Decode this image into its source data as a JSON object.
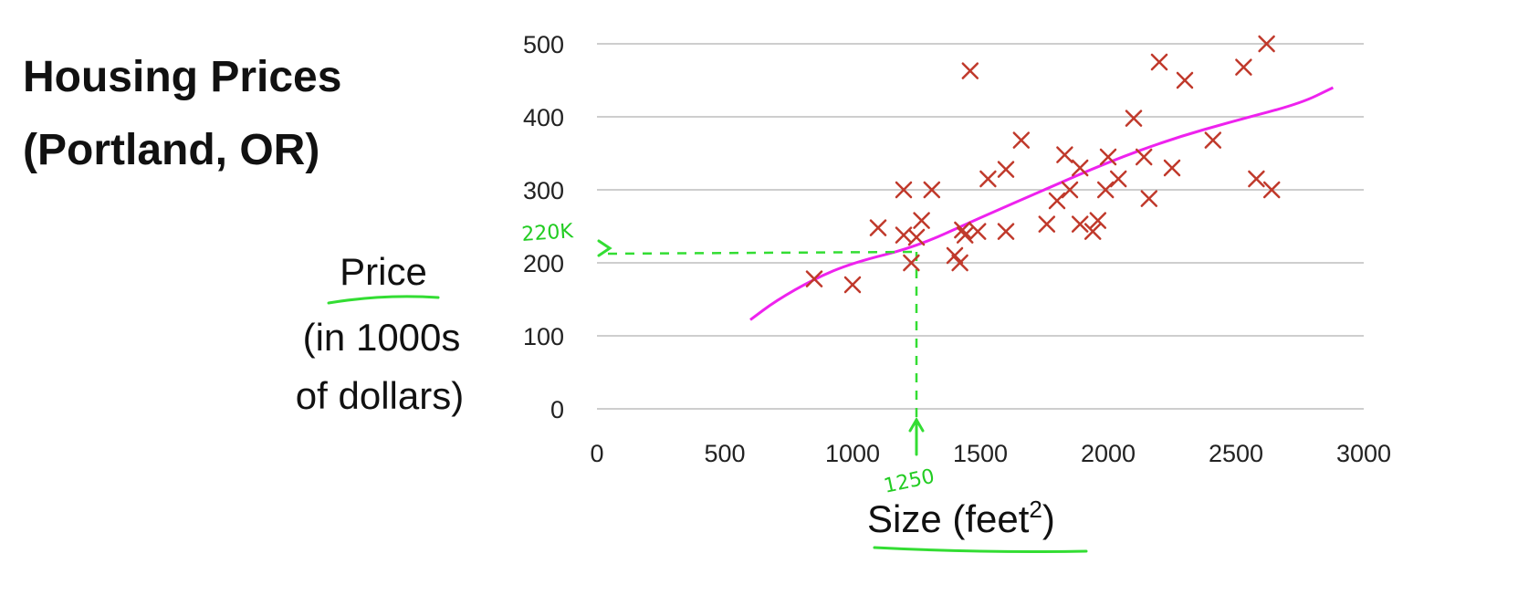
{
  "chart_data": {
    "type": "scatter",
    "title": "Housing Prices",
    "subtitle": "(Portland, OR)",
    "ylabel_lines": [
      "Price",
      "(in 1000s",
      "of dollars)"
    ],
    "xlabel_main": "Size (feet",
    "xlabel_sup": "2",
    "xlabel_close": ")",
    "xlim": [
      0,
      3000
    ],
    "ylim": [
      0,
      500
    ],
    "x_ticks": [
      0,
      500,
      1000,
      1500,
      2000,
      2500,
      3000
    ],
    "y_ticks": [
      0,
      100,
      200,
      300,
      400,
      500
    ],
    "grid": "horizontal",
    "marker": "x",
    "colors": {
      "points": "#c0392b",
      "fit_line": "#ee22ee",
      "annotation": "#22cc22",
      "grid": "#bdbdbd"
    },
    "points": [
      [
        850,
        178
      ],
      [
        1000,
        170
      ],
      [
        1100,
        248
      ],
      [
        1200,
        300
      ],
      [
        1200,
        238
      ],
      [
        1230,
        200
      ],
      [
        1250,
        235
      ],
      [
        1270,
        258
      ],
      [
        1310,
        300
      ],
      [
        1400,
        210
      ],
      [
        1420,
        200
      ],
      [
        1430,
        245
      ],
      [
        1440,
        238
      ],
      [
        1460,
        463
      ],
      [
        1490,
        243
      ],
      [
        1530,
        315
      ],
      [
        1600,
        328
      ],
      [
        1600,
        243
      ],
      [
        1660,
        368
      ],
      [
        1760,
        253
      ],
      [
        1800,
        285
      ],
      [
        1830,
        348
      ],
      [
        1850,
        300
      ],
      [
        1890,
        330
      ],
      [
        1890,
        253
      ],
      [
        1940,
        243
      ],
      [
        1960,
        258
      ],
      [
        1990,
        300
      ],
      [
        2000,
        345
      ],
      [
        2040,
        315
      ],
      [
        2100,
        398
      ],
      [
        2140,
        345
      ],
      [
        2160,
        288
      ],
      [
        2200,
        475
      ],
      [
        2250,
        330
      ],
      [
        2300,
        450
      ],
      [
        2410,
        368
      ],
      [
        2530,
        468
      ],
      [
        2580,
        315
      ],
      [
        2620,
        500
      ],
      [
        2640,
        300
      ]
    ],
    "fit_line": [
      [
        600,
        122
      ],
      [
        700,
        148
      ],
      [
        850,
        178
      ],
      [
        1000,
        200
      ],
      [
        1250,
        222
      ],
      [
        1500,
        262
      ],
      [
        1750,
        300
      ],
      [
        2000,
        338
      ],
      [
        2250,
        370
      ],
      [
        2500,
        395
      ],
      [
        2750,
        418
      ],
      [
        2880,
        440
      ]
    ],
    "annotations": {
      "x_value": 1250,
      "x_label": "1250",
      "y_value": 215,
      "y_label": "220K"
    }
  }
}
